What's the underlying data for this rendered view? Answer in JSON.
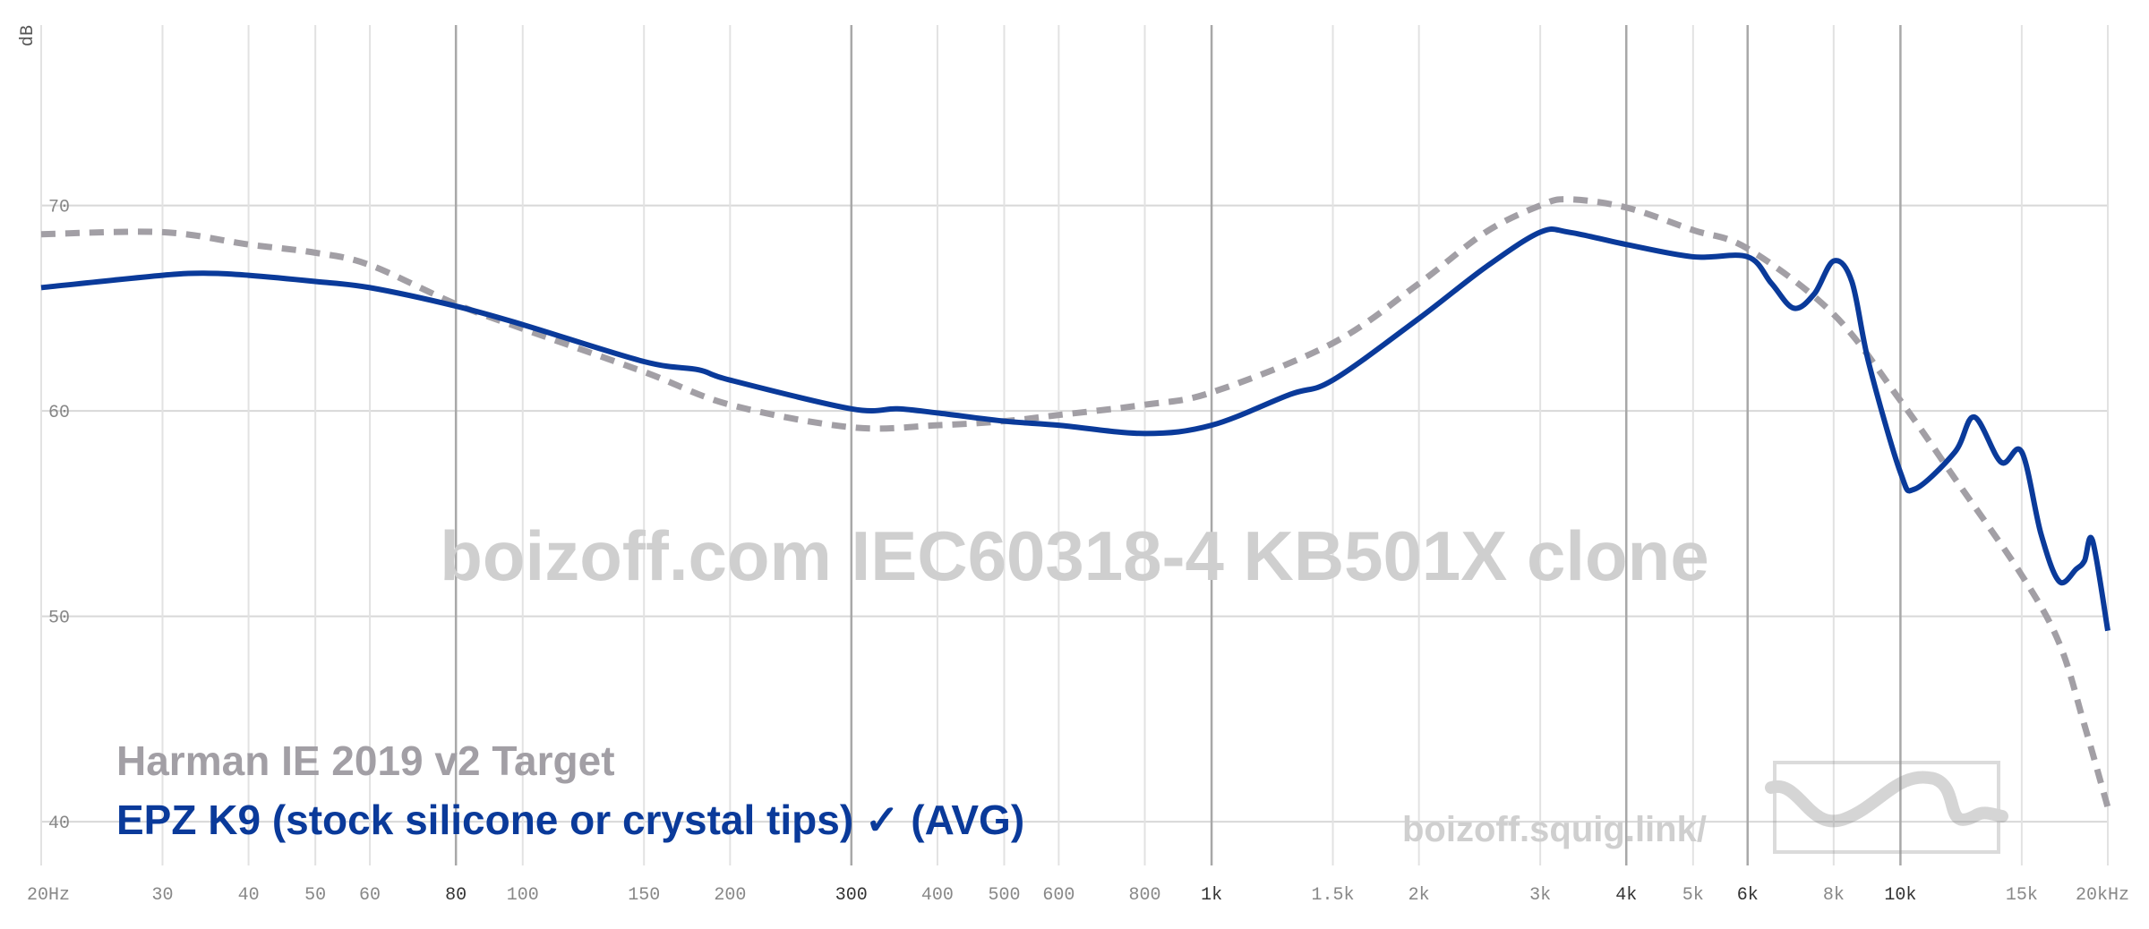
{
  "chart_data": {
    "type": "line",
    "title": "boizoff.com IEC60318-4 KB501X clone",
    "subtitle": "boizoff.squig.link/",
    "y_label": "dB",
    "log_x": true,
    "grid": true,
    "xlim": [
      20,
      20000
    ],
    "ylim": [
      37,
      79
    ],
    "yticks": [
      40,
      50,
      60,
      70
    ],
    "xticks": [
      {
        "value": 20,
        "label": "20Hz"
      },
      30,
      40,
      50,
      60,
      {
        "value": 80,
        "label": "80",
        "major": true
      },
      100,
      150,
      200,
      {
        "value": 300,
        "label": "300",
        "major": true
      },
      400,
      500,
      600,
      800,
      {
        "value": 1000,
        "label": "1k",
        "major": true
      },
      {
        "value": 1500,
        "label": "1.5k"
      },
      {
        "value": 2000,
        "label": "2k"
      },
      {
        "value": 3000,
        "label": "3k"
      },
      {
        "value": 4000,
        "label": "4k",
        "major": true
      },
      {
        "value": 5000,
        "label": "5k"
      },
      {
        "value": 6000,
        "label": "6k",
        "major": true
      },
      {
        "value": 8000,
        "label": "8k"
      },
      {
        "value": 10000,
        "label": "10k",
        "major": true
      },
      {
        "value": 15000,
        "label": "15k"
      },
      {
        "value": 20000,
        "label": "20kHz"
      }
    ],
    "series": [
      {
        "name": "Harman IE 2019 v2 Target",
        "color": "#a29fa5",
        "dashed": true,
        "x": [
          20,
          30,
          40,
          50,
          60,
          80,
          100,
          150,
          200,
          300,
          400,
          500,
          600,
          800,
          1000,
          1500,
          2000,
          2500,
          3000,
          3300,
          4000,
          5000,
          6000,
          8000,
          10000,
          12000,
          15000,
          17000,
          18500,
          20000
        ],
        "values": [
          68.6,
          68.7,
          68.1,
          67.7,
          67.1,
          65.2,
          64.0,
          61.9,
          60.3,
          59.2,
          59.3,
          59.5,
          59.8,
          60.3,
          60.9,
          63.3,
          66.2,
          68.7,
          70.0,
          70.3,
          69.9,
          68.8,
          67.9,
          64.7,
          60.5,
          56.7,
          52.0,
          48.7,
          44.7,
          40.7
        ]
      },
      {
        "name": "EPZ K9 (stock silicone or crystal tips) ✓ (AVG)",
        "color": "#0a3a9a",
        "dashed": false,
        "x": [
          20,
          30,
          35,
          40,
          50,
          60,
          80,
          100,
          150,
          180,
          200,
          300,
          350,
          400,
          500,
          600,
          800,
          1000,
          1300,
          1500,
          2000,
          2500,
          3000,
          3300,
          4000,
          5000,
          6000,
          6500,
          7000,
          7500,
          8000,
          8500,
          9000,
          10000,
          10500,
          12000,
          12800,
          14000,
          15000,
          16000,
          17000,
          18000,
          18500,
          19000,
          20000
        ],
        "values": [
          66.0,
          66.6,
          66.7,
          66.6,
          66.3,
          66.0,
          65.1,
          64.2,
          62.4,
          62.0,
          61.5,
          60.1,
          60.1,
          59.9,
          59.5,
          59.3,
          58.9,
          59.3,
          60.8,
          61.5,
          64.5,
          67.0,
          68.7,
          68.7,
          68.1,
          67.5,
          67.5,
          66.2,
          65.0,
          65.7,
          67.3,
          66.3,
          62.3,
          57.0,
          56.2,
          58.0,
          59.7,
          57.5,
          58.0,
          54.0,
          51.7,
          52.3,
          52.7,
          53.7,
          49.3
        ]
      }
    ]
  }
}
